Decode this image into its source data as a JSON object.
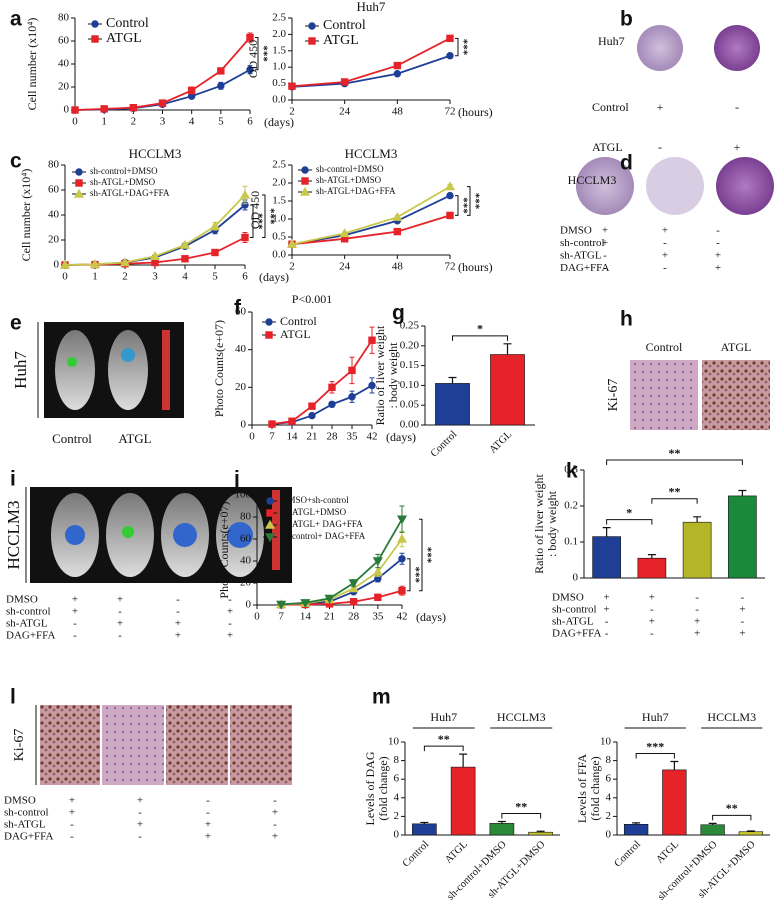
{
  "chart_data": [
    {
      "type": "line",
      "ylabel": "Cell number (x10⁴)",
      "xlabel": "(days)",
      "x": [
        0,
        1,
        2,
        3,
        4,
        5,
        6
      ],
      "xlim": [
        0,
        6
      ],
      "xticks": [
        0,
        1,
        2,
        3,
        4,
        5,
        6
      ],
      "ylim": [
        0,
        80
      ],
      "yticks": [
        0,
        20,
        40,
        60,
        80
      ],
      "legend": "upper left",
      "significance": [
        "***"
      ],
      "series": [
        {
          "name": "Control",
          "color": "#1f3f97",
          "values": [
            0,
            0.5,
            1.5,
            5,
            12,
            21,
            35
          ],
          "errors": [
            0,
            0.2,
            0.3,
            0.8,
            1.5,
            3,
            3.5
          ]
        },
        {
          "name": "ATGL",
          "color": "#e52329",
          "values": [
            0,
            1,
            2,
            6,
            17,
            34,
            63
          ],
          "errors": [
            0,
            0.2,
            0.4,
            1,
            3,
            2.5,
            4
          ]
        }
      ]
    },
    {
      "type": "line",
      "title": "Huh7",
      "ylabel": "OD 450",
      "xlabel": "(hours)",
      "categories": [
        "2",
        "24",
        "48",
        "72"
      ],
      "ylim": [
        0,
        2.5
      ],
      "yticks": [
        {
          "value": 0,
          "label": "0.0"
        },
        0.5,
        {
          "value": 1,
          "label": "1.0"
        },
        1.5,
        {
          "value": 2,
          "label": "2.0"
        },
        2.5
      ],
      "legend": "upper left",
      "significance": [
        "***"
      ],
      "series": [
        {
          "name": "Control",
          "color": "#1f3f97",
          "values": [
            0.4,
            0.5,
            0.8,
            1.35
          ],
          "errors": [
            0.02,
            0.03,
            0.04,
            0.05
          ]
        },
        {
          "name": "ATGL",
          "color": "#e52329",
          "values": [
            0.42,
            0.55,
            1.05,
            1.88
          ],
          "errors": [
            0.02,
            0.03,
            0.04,
            0.08
          ]
        }
      ]
    },
    {
      "type": "line",
      "title": "HCCLM3",
      "ylabel": "Cell number (x10⁴)",
      "xlabel": "(days)",
      "x": [
        0,
        1,
        2,
        3,
        4,
        5,
        6
      ],
      "xlim": [
        0,
        6
      ],
      "xticks": [
        0,
        1,
        2,
        3,
        4,
        5,
        6
      ],
      "ylim": [
        0,
        80
      ],
      "yticks": [
        0,
        20,
        40,
        60,
        80
      ],
      "legend": "upper left",
      "significance": [
        "***",
        "***"
      ],
      "series": [
        {
          "name": "sh-control+DMSO",
          "color": "#1f3f97",
          "values": [
            0,
            0.5,
            2,
            6,
            15,
            28,
            48
          ],
          "errors": [
            0,
            0.2,
            0.4,
            1,
            2,
            3,
            4
          ]
        },
        {
          "name": "sh-ATGL+DMSO",
          "color": "#e52329",
          "values": [
            0,
            0.3,
            1,
            2,
            5,
            10,
            22
          ],
          "errors": [
            0,
            0.1,
            0.3,
            0.5,
            1,
            2,
            4
          ]
        },
        {
          "name": "sh-ATGL+DAG+FFA",
          "color": "#c8c84a",
          "values": [
            0,
            0.6,
            2,
            7,
            16,
            31,
            56
          ],
          "errors": [
            0,
            0.2,
            0.4,
            1,
            2,
            3,
            7
          ]
        }
      ]
    },
    {
      "type": "line",
      "title": "HCCLM3",
      "ylabel": "OD 450",
      "xlabel": "(hours)",
      "categories": [
        "2",
        "24",
        "48",
        "72"
      ],
      "ylim": [
        0,
        2.5
      ],
      "yticks": [
        {
          "value": 0,
          "label": "0.0"
        },
        0.5,
        {
          "value": 1,
          "label": "1.0"
        },
        1.5,
        {
          "value": 2,
          "label": "2.0"
        },
        2.5
      ],
      "legend": "upper left",
      "significance": [
        "***",
        "***"
      ],
      "series": [
        {
          "name": "sh-control+DMSO",
          "color": "#1f3f97",
          "values": [
            0.3,
            0.55,
            0.95,
            1.65
          ],
          "errors": [
            0.02,
            0.03,
            0.04,
            0.06
          ]
        },
        {
          "name": "sh-ATGL+DMSO",
          "color": "#e52329",
          "values": [
            0.3,
            0.45,
            0.65,
            1.1
          ],
          "errors": [
            0.02,
            0.03,
            0.03,
            0.05
          ]
        },
        {
          "name": "sh-ATGL+DAG+FFA",
          "color": "#c8c84a",
          "values": [
            0.3,
            0.6,
            1.05,
            1.9
          ],
          "errors": [
            0.02,
            0.03,
            0.04,
            0.06
          ]
        }
      ]
    },
    {
      "type": "line",
      "annotation": "P<0.001",
      "ylabel": "Photo Counts(e+07)",
      "xlabel": "(days)",
      "x": [
        7,
        14,
        21,
        28,
        35,
        42
      ],
      "xlim": [
        0,
        42
      ],
      "xticks": [
        0,
        7,
        14,
        21,
        28,
        35,
        42
      ],
      "ylim": [
        0,
        60
      ],
      "yticks": [
        0,
        20,
        40,
        60
      ],
      "legend": "upper left",
      "series": [
        {
          "name": "Control",
          "color": "#1f3f97",
          "values": [
            0.5,
            1.5,
            5,
            11,
            15,
            21
          ],
          "errors": [
            0.2,
            0.5,
            1,
            1.5,
            3,
            4
          ]
        },
        {
          "name": "ATGL",
          "color": "#e52329",
          "values": [
            0.5,
            2,
            10,
            20,
            29,
            45
          ],
          "errors": [
            0.2,
            0.5,
            1.5,
            3,
            7,
            7
          ]
        }
      ]
    },
    {
      "type": "bar",
      "ylabel": [
        "Ratio of liver weight",
        ": body weight"
      ],
      "categories": [
        "Control",
        "ATGL"
      ],
      "values": [
        0.105,
        0.178
      ],
      "errors": [
        0.015,
        0.027
      ],
      "colors": [
        "#1f3f97",
        "#e52329"
      ],
      "ylim": [
        0,
        0.25
      ],
      "yticks": [
        {
          "value": 0,
          "label": "0.00"
        },
        {
          "value": 0.05,
          "label": "0.05"
        },
        {
          "value": 0.1,
          "label": "0.10"
        },
        {
          "value": 0.15,
          "label": "0.15"
        },
        {
          "value": 0.2,
          "label": "0.20"
        },
        {
          "value": 0.25,
          "label": "0.25"
        }
      ],
      "significance": [
        "*"
      ]
    },
    {
      "type": "line",
      "ylabel": "Photo Counts(e+07)",
      "xlabel": "(days)",
      "x": [
        7,
        14,
        21,
        28,
        35,
        42
      ],
      "xlim": [
        0,
        42
      ],
      "xticks": [
        0,
        7,
        14,
        21,
        28,
        35,
        42
      ],
      "ylim": [
        0,
        100
      ],
      "yticks": [
        0,
        20,
        40,
        60,
        80,
        100
      ],
      "legend": "upper left",
      "significance": [
        "***",
        "***"
      ],
      "series": [
        {
          "name": "DMSO+sh-control",
          "color": "#1f3f97",
          "values": [
            0.5,
            1,
            3,
            12,
            24,
            42
          ],
          "errors": [
            0.2,
            0.4,
            1,
            2,
            3,
            5
          ]
        },
        {
          "name": "sh-ATGL+DMSO",
          "color": "#e52329",
          "values": [
            0.3,
            0.5,
            1,
            3,
            7,
            13
          ],
          "errors": [
            0.1,
            0.2,
            0.4,
            1,
            2,
            4
          ]
        },
        {
          "name": "sh-ATGL+ DAG+FFA",
          "color": "#c8c84a",
          "values": [
            0.5,
            1.5,
            5,
            15,
            30,
            60
          ],
          "errors": [
            0.2,
            0.4,
            1,
            2,
            4,
            7
          ]
        },
        {
          "name": "sh-control+ DAG+FFA",
          "color": "#2a7a3a",
          "values": [
            0.5,
            2,
            6,
            20,
            40,
            78
          ],
          "errors": [
            0.2,
            0.5,
            1,
            3,
            6,
            12
          ]
        }
      ]
    },
    {
      "type": "bar",
      "ylabel": [
        "Ratio of liver weight",
        ": body weight"
      ],
      "values": [
        0.115,
        0.055,
        0.155,
        0.228
      ],
      "errors": [
        0.025,
        0.01,
        0.015,
        0.015
      ],
      "colors": [
        "#1f3f97",
        "#e52329",
        "#b5b52a",
        "#1a8a3a"
      ],
      "ylim": [
        0,
        0.3
      ],
      "yticks": [
        0,
        0.1,
        0.2,
        0.3
      ],
      "significance": [
        "*",
        "**",
        "**"
      ],
      "conditions": [
        [
          "DMSO",
          "+",
          "+",
          "-",
          "-"
        ],
        [
          "sh-control",
          "+",
          "-",
          "-",
          "+"
        ],
        [
          "sh-ATGL",
          "-",
          "+",
          "+",
          "-"
        ],
        [
          "DAG+FFA",
          "-",
          "-",
          "+",
          "+"
        ]
      ]
    },
    {
      "type": "bar",
      "ylabel": [
        "Levels of DAG",
        "(fold change)"
      ],
      "groups": [
        "Huh7",
        "HCCLM3"
      ],
      "categories": [
        "Control",
        "ATGL",
        "sh-control+DMSO",
        "sh-ATGL+DMSO"
      ],
      "values": [
        1.2,
        7.3,
        1.25,
        0.3
      ],
      "errors": [
        0.15,
        1.4,
        0.2,
        0.1
      ],
      "colors": [
        "#1f3f97",
        "#e52329",
        "#2a8a3a",
        "#c8c830"
      ],
      "ylim": [
        0,
        10
      ],
      "yticks": [
        0,
        2,
        4,
        6,
        8,
        10
      ],
      "significance": [
        "**",
        "**"
      ]
    },
    {
      "type": "bar",
      "ylabel": [
        "Levels of FFA",
        "(fold change)"
      ],
      "groups": [
        "Huh7",
        "HCCLM3"
      ],
      "categories": [
        "Control",
        "ATGL",
        "sh-control+DMSO",
        "sh-ATGL+DMSO"
      ],
      "values": [
        1.15,
        7.0,
        1.1,
        0.35
      ],
      "errors": [
        0.15,
        0.9,
        0.15,
        0.08
      ],
      "colors": [
        "#1f3f97",
        "#e52329",
        "#2a8a3a",
        "#c8c830"
      ],
      "ylim": [
        0,
        10
      ],
      "yticks": [
        0,
        2,
        4,
        6,
        8,
        10
      ],
      "significance": [
        "***",
        "**"
      ]
    }
  ],
  "figure": {
    "letters": [
      "a",
      "b",
      "c",
      "d",
      "e",
      "f",
      "g",
      "h",
      "i",
      "j",
      "k",
      "l",
      "m"
    ],
    "b": {
      "cell": "Huh7",
      "rows": [
        [
          "Control",
          "+",
          "-"
        ],
        [
          "ATGL",
          "-",
          "+"
        ]
      ]
    },
    "d": {
      "cell": "HCCLM3",
      "rows": [
        [
          "DMSO",
          "+",
          "+",
          "-"
        ],
        [
          "sh-control",
          "+",
          "-",
          "-"
        ],
        [
          "sh-ATGL",
          "-",
          "+",
          "+"
        ],
        [
          "DAG+FFA",
          "-",
          "-",
          "+"
        ]
      ]
    },
    "e": {
      "cell": "Huh7",
      "groups": [
        "Control",
        "ATGL"
      ]
    },
    "h": {
      "stain": "Ki-67",
      "groups": [
        "Control",
        "ATGL"
      ]
    },
    "i": {
      "cell": "HCCLM3",
      "rows": [
        [
          "DMSO",
          "+",
          "+",
          "-",
          "-"
        ],
        [
          "sh-control",
          "+",
          "-",
          "-",
          "+"
        ],
        [
          "sh-ATGL",
          "-",
          "+",
          "+",
          "-"
        ],
        [
          "DAG+FFA",
          "-",
          "-",
          "+",
          "+"
        ]
      ]
    },
    "l": {
      "stain": "Ki-67",
      "rows": [
        [
          "DMSO",
          "+",
          "+",
          "-",
          "-"
        ],
        [
          "sh-control",
          "+",
          "-",
          "-",
          "+"
        ],
        [
          "sh-ATGL",
          "-",
          "+",
          "+",
          "-"
        ],
        [
          "DAG+FFA",
          "-",
          "-",
          "+",
          "+"
        ]
      ]
    }
  }
}
